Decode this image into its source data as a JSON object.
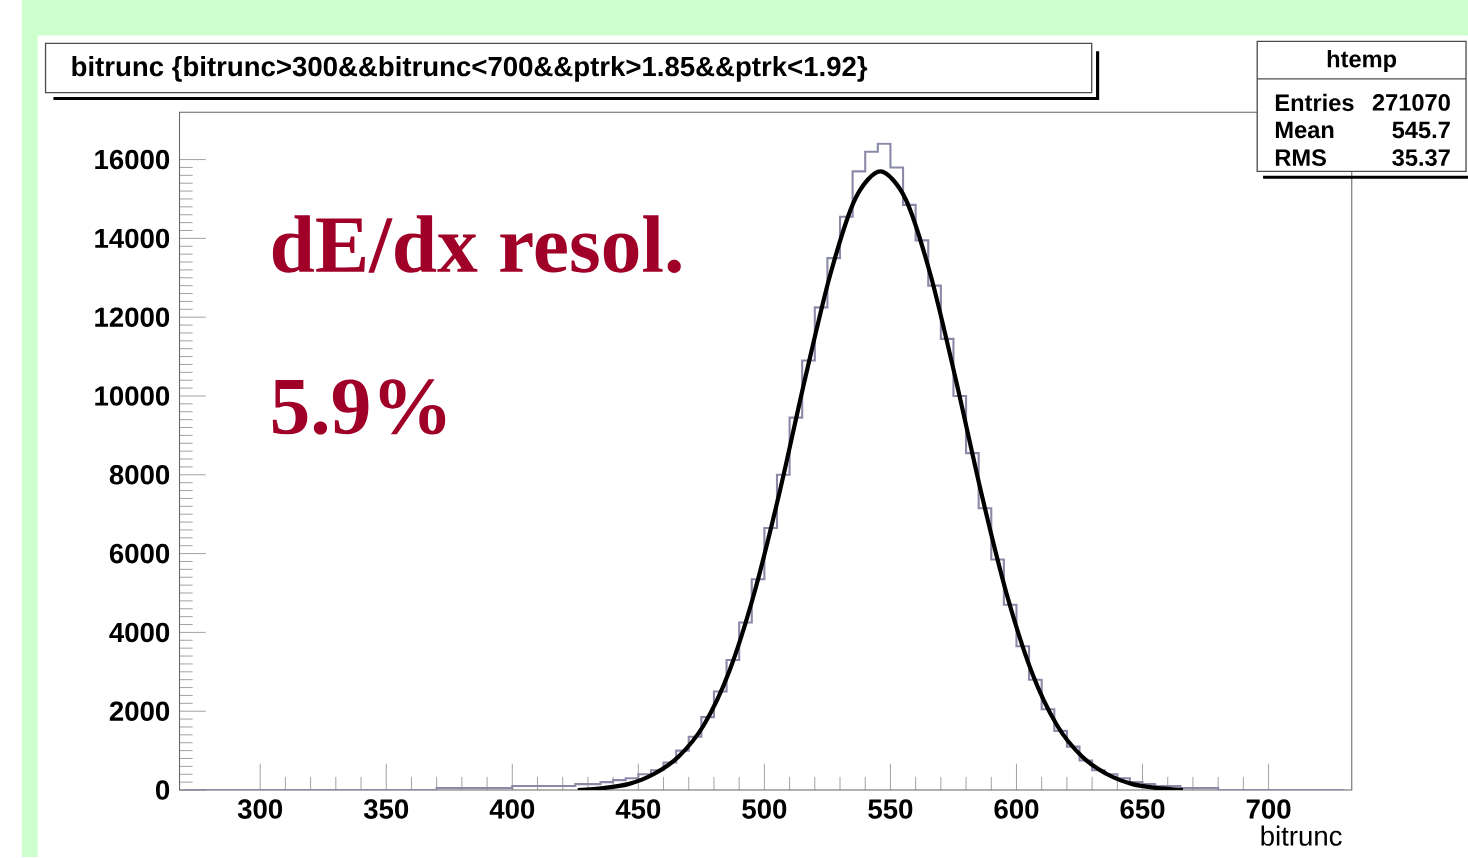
{
  "chart_data": {
    "type": "histogram",
    "title": "bitrunc {bitrunc>300&&bitrunc<700&&ptrk>1.85&&ptrk<1.92}",
    "xlabel": "bitrunc",
    "annotations": [
      "htemp",
      "Entries",
      "271070",
      "Mean",
      "545.7",
      "RMS",
      "35.37",
      "dE/dx resol.",
      "5.9%"
    ],
    "bins": [
      270,
      275,
      280,
      285,
      290,
      295,
      300,
      305,
      310,
      315,
      320,
      325,
      330,
      335,
      340,
      345,
      350,
      355,
      360,
      365,
      370,
      375,
      380,
      385,
      390,
      395,
      400,
      405,
      410,
      415,
      420,
      425,
      430,
      435,
      440,
      445,
      450,
      455,
      460,
      465,
      470,
      475,
      480,
      485,
      490,
      495,
      500,
      505,
      510,
      515,
      520,
      525,
      530,
      535,
      540,
      545,
      550,
      555,
      560,
      565,
      570,
      575,
      580,
      585,
      590,
      595,
      600,
      605,
      610,
      615,
      620,
      625,
      630,
      635,
      640,
      645,
      650,
      655,
      660,
      665,
      670,
      675,
      680,
      685,
      690,
      695,
      700,
      705,
      710,
      715,
      720,
      725,
      730
    ],
    "values": [
      0,
      0,
      0,
      0,
      0,
      0,
      0,
      0,
      0,
      0,
      0,
      0,
      0,
      0,
      0,
      0,
      0,
      0,
      0,
      0,
      50,
      50,
      50,
      50,
      50,
      50,
      100,
      100,
      100,
      100,
      100,
      150,
      150,
      200,
      250,
      300,
      400,
      500,
      700,
      1000,
      1350,
      1850,
      2500,
      3300,
      4250,
      5350,
      6650,
      8000,
      9450,
      10900,
      12250,
      13500,
      14550,
      15700,
      16200,
      16400,
      15800,
      14850,
      13950,
      12800,
      11450,
      10000,
      8550,
      7150,
      5850,
      4700,
      3650,
      2800,
      2050,
      1500,
      1100,
      750,
      500,
      400,
      300,
      200,
      150,
      100,
      100,
      50,
      50,
      50,
      0,
      0,
      0,
      0,
      0,
      0,
      0,
      0,
      0,
      0
    ],
    "color": "#8a8aa8",
    "series": [
      {
        "type": "line",
        "color": "#000000",
        "x": [
          426,
          436,
          446,
          456,
          466,
          476,
          486,
          496,
          506,
          516,
          526,
          536,
          546,
          556,
          566,
          576,
          586,
          596,
          606,
          616,
          626,
          636,
          646,
          656,
          666
        ],
        "values": [
          0,
          50,
          150,
          400,
          850,
          1650,
          3000,
          5000,
          7550,
          10400,
          13050,
          15000,
          15700,
          15000,
          13050,
          10400,
          7550,
          5000,
          3000,
          1650,
          850,
          400,
          150,
          50,
          0
        ]
      }
    ],
    "xlim": [
      268,
      733
    ],
    "ylim": [
      0,
      17200
    ],
    "xticks": [
      300,
      350,
      400,
      450,
      500,
      550,
      600,
      650,
      700
    ],
    "yticks": [
      0,
      2000,
      4000,
      6000,
      8000,
      10000,
      12000,
      14000,
      16000
    ],
    "grid": false
  }
}
